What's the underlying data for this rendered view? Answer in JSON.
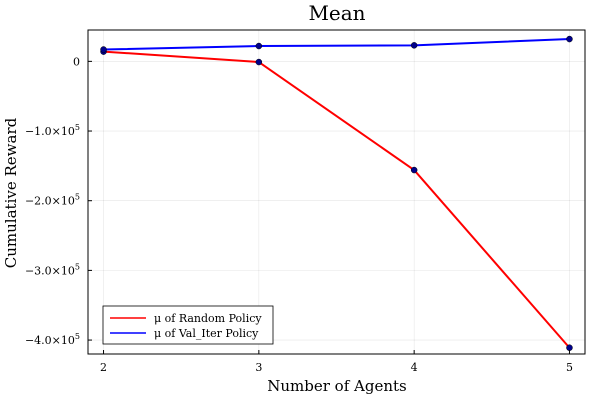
{
  "chart_data": {
    "type": "line",
    "title": "Mean",
    "xlabel": "Number of Agents",
    "ylabel": "Cumulative Reward",
    "x": [
      2,
      3,
      4,
      5
    ],
    "xlim": [
      1.9,
      5.1
    ],
    "ylim": [
      -420000,
      45000
    ],
    "x_ticks": [
      {
        "value": 2,
        "label": "2"
      },
      {
        "value": 3,
        "label": "3"
      },
      {
        "value": 4,
        "label": "4"
      },
      {
        "value": 5,
        "label": "5"
      }
    ],
    "y_ticks": [
      {
        "value": 0,
        "mantissa": "0",
        "exp": ""
      },
      {
        "value": -100000,
        "mantissa": "−1.0×10",
        "exp": "5"
      },
      {
        "value": -200000,
        "mantissa": "−2.0×10",
        "exp": "5"
      },
      {
        "value": -300000,
        "mantissa": "−3.0×10",
        "exp": "5"
      },
      {
        "value": -400000,
        "mantissa": "−4.0×10",
        "exp": "5"
      }
    ],
    "grid": true,
    "legend_position": "bottom-left",
    "series": [
      {
        "name": "μ of Random Policy",
        "color": "#ff0000",
        "values": [
          14000,
          -1000,
          -156000,
          -411000
        ]
      },
      {
        "name": "μ of Val_Iter Policy",
        "color": "#0000ff",
        "values": [
          17000,
          22000,
          23000,
          32000
        ]
      }
    ],
    "marker_color": "#00008b"
  }
}
